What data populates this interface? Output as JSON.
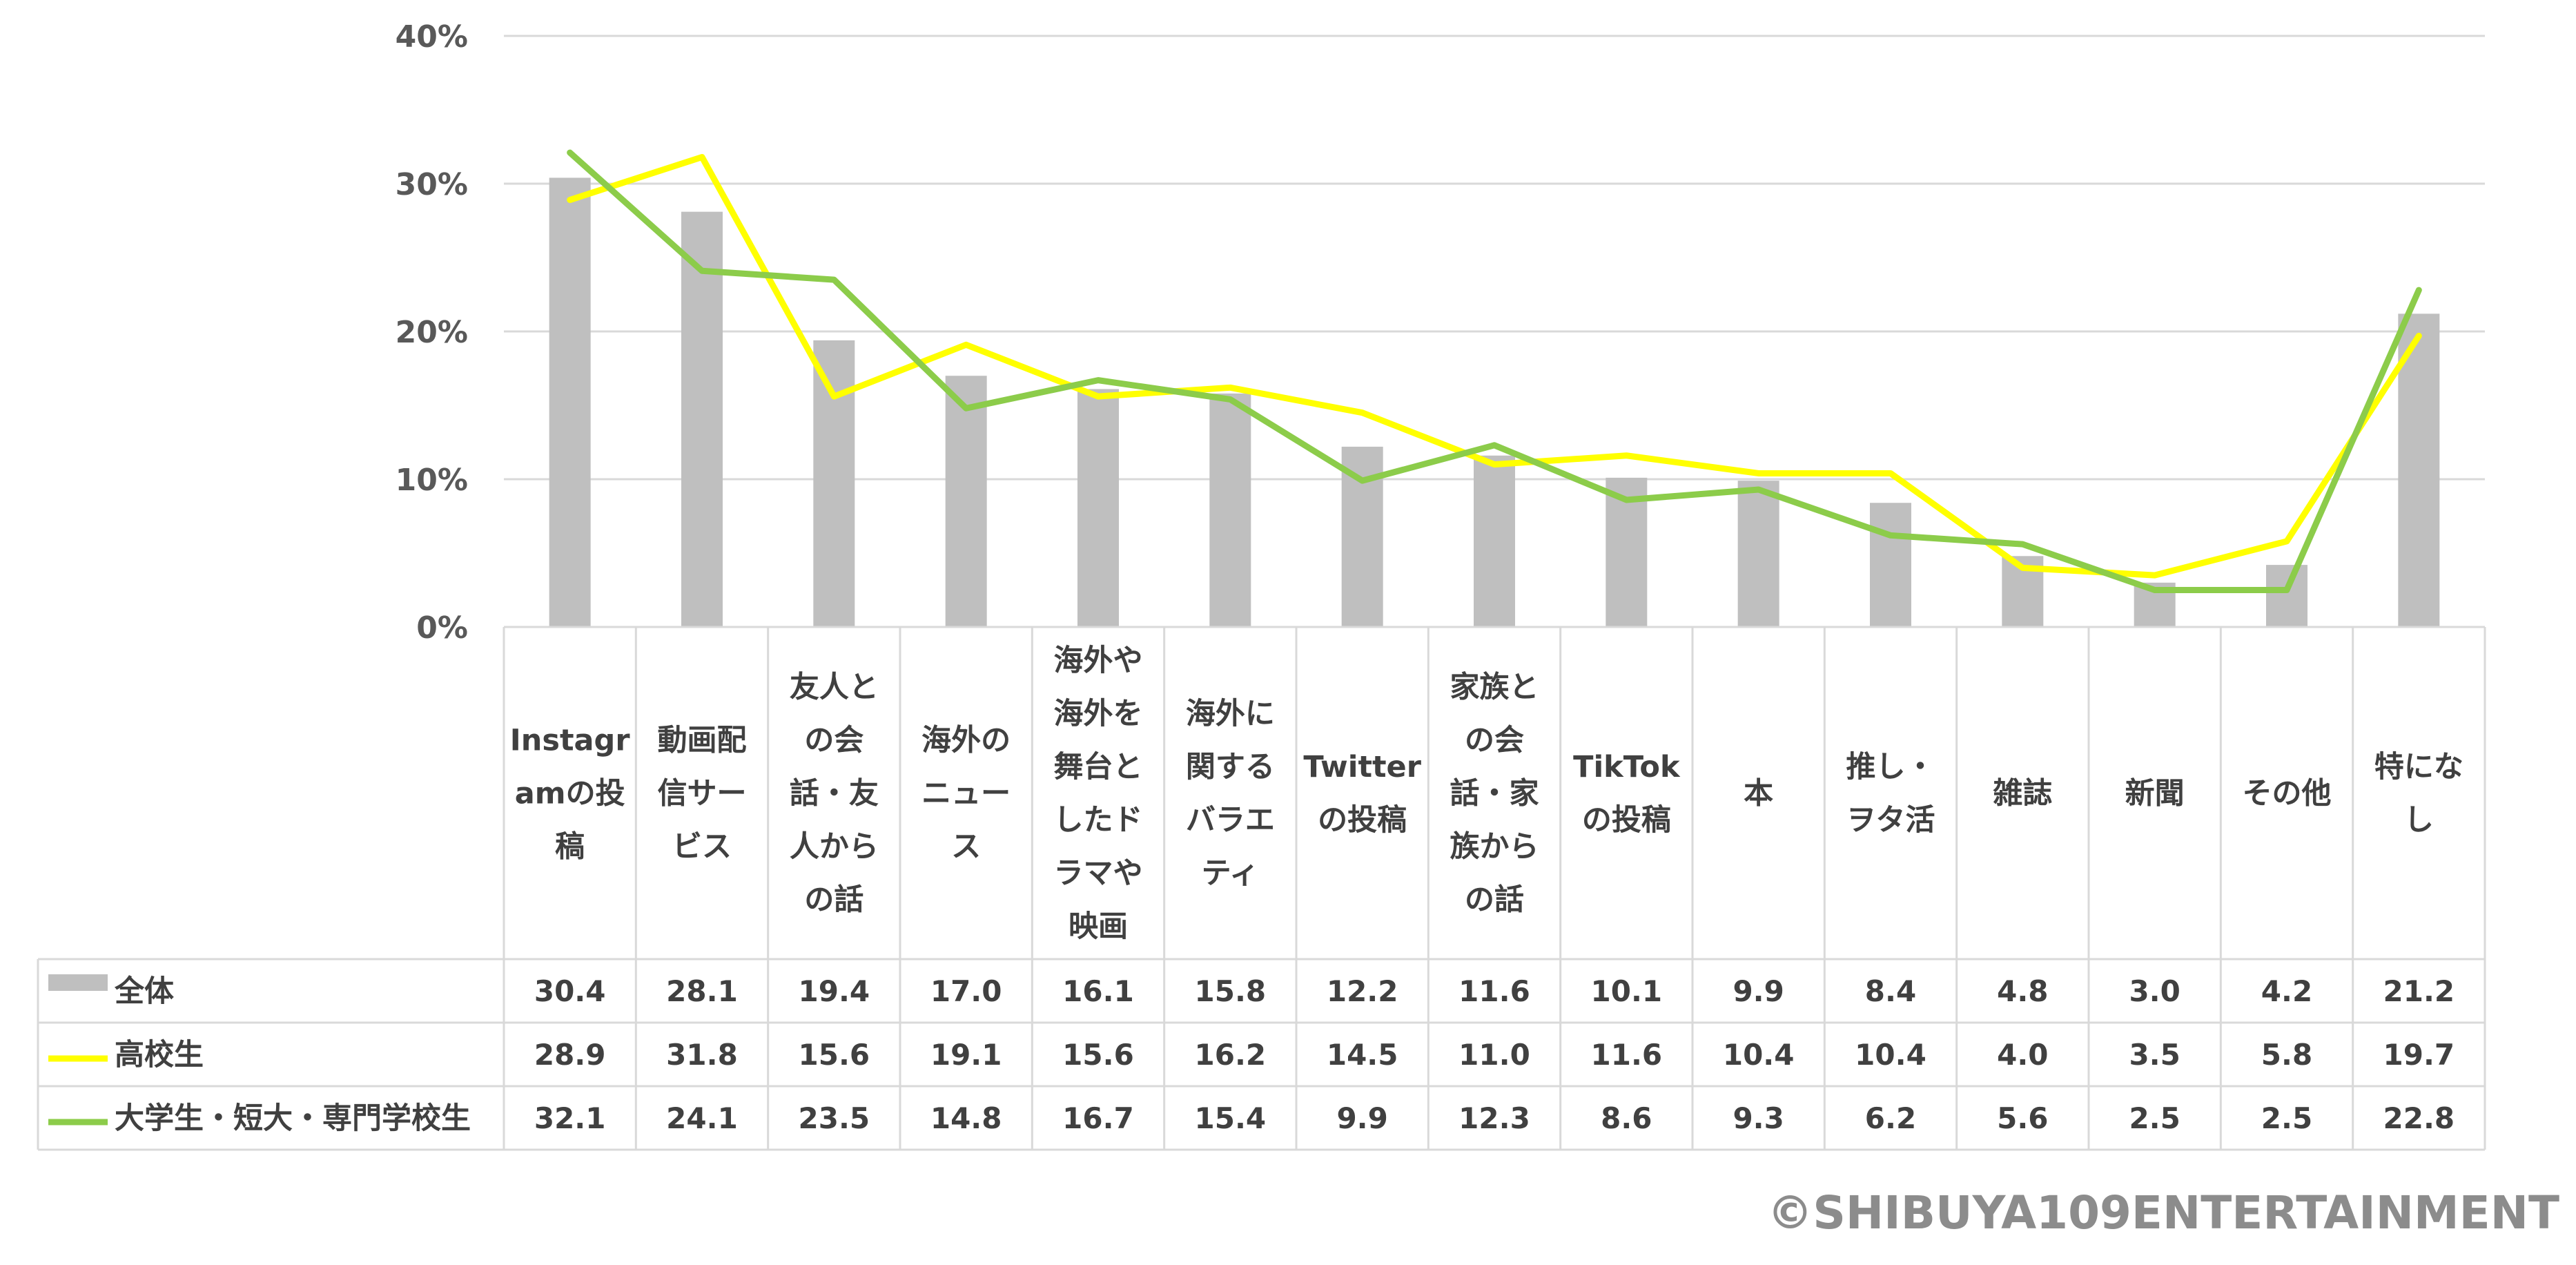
{
  "chart_data": {
    "type": "bar",
    "title": "",
    "xlabel": "",
    "ylabel": "",
    "y_unit": "%",
    "ylim": [
      0,
      40
    ],
    "yticks": [
      0,
      10,
      20,
      30,
      40
    ],
    "ytick_labels": [
      "0%",
      "10%",
      "20%",
      "30%",
      "40%"
    ],
    "grid": true,
    "legend": "data-table-left",
    "categories": [
      [
        "Instagr",
        "amの投",
        "稿"
      ],
      [
        "動画配",
        "信サー",
        "ビス"
      ],
      [
        "友人と",
        "の会",
        "話・友",
        "人から",
        "の話"
      ],
      [
        "海外の",
        "ニュー",
        "ス"
      ],
      [
        "海外や",
        "海外を",
        "舞台と",
        "したド",
        "ラマや",
        "映画"
      ],
      [
        "海外に",
        "関する",
        "バラエ",
        "ティ"
      ],
      [
        "Twitter",
        "の投稿"
      ],
      [
        "家族と",
        "の会",
        "話・家",
        "族から",
        "の話"
      ],
      [
        "TikTok",
        "の投稿"
      ],
      [
        "本"
      ],
      [
        "推し・",
        "ヲタ活"
      ],
      [
        "雑誌"
      ],
      [
        "新聞"
      ],
      [
        "その他"
      ],
      [
        "特にな",
        "し"
      ]
    ],
    "series": [
      {
        "name": "全体",
        "kind": "bar",
        "color": "#bfbfbf",
        "values": [
          30.4,
          28.1,
          19.4,
          17.0,
          16.1,
          15.8,
          12.2,
          11.6,
          10.1,
          9.9,
          8.4,
          4.8,
          3.0,
          4.2,
          21.2
        ]
      },
      {
        "name": "高校生",
        "kind": "line",
        "color": "#ffff00",
        "values": [
          28.9,
          31.8,
          15.6,
          19.1,
          15.6,
          16.2,
          14.5,
          11.0,
          11.6,
          10.4,
          10.4,
          4.0,
          3.5,
          5.8,
          19.7
        ]
      },
      {
        "name": "大学生・短大・専門学校生",
        "kind": "line",
        "color": "#8ccc4a",
        "values": [
          32.1,
          24.1,
          23.5,
          14.8,
          16.7,
          15.4,
          9.9,
          12.3,
          8.6,
          9.3,
          6.2,
          5.6,
          2.5,
          2.5,
          22.8
        ]
      }
    ],
    "table_values": [
      [
        "30.4",
        "28.1",
        "19.4",
        "17.0",
        "16.1",
        "15.8",
        "12.2",
        "11.6",
        "10.1",
        "9.9",
        "8.4",
        "4.8",
        "3.0",
        "4.2",
        "21.2"
      ],
      [
        "28.9",
        "31.8",
        "15.6",
        "19.1",
        "15.6",
        "16.2",
        "14.5",
        "11.0",
        "11.6",
        "10.4",
        "10.4",
        "4.0",
        "3.5",
        "5.8",
        "19.7"
      ],
      [
        "32.1",
        "24.1",
        "23.5",
        "14.8",
        "16.7",
        "15.4",
        "9.9",
        "12.3",
        "8.6",
        "9.3",
        "6.2",
        "5.6",
        "2.5",
        "2.5",
        "22.8"
      ]
    ]
  },
  "copyright": "©SHIBUYA109ENTERTAINMENT"
}
